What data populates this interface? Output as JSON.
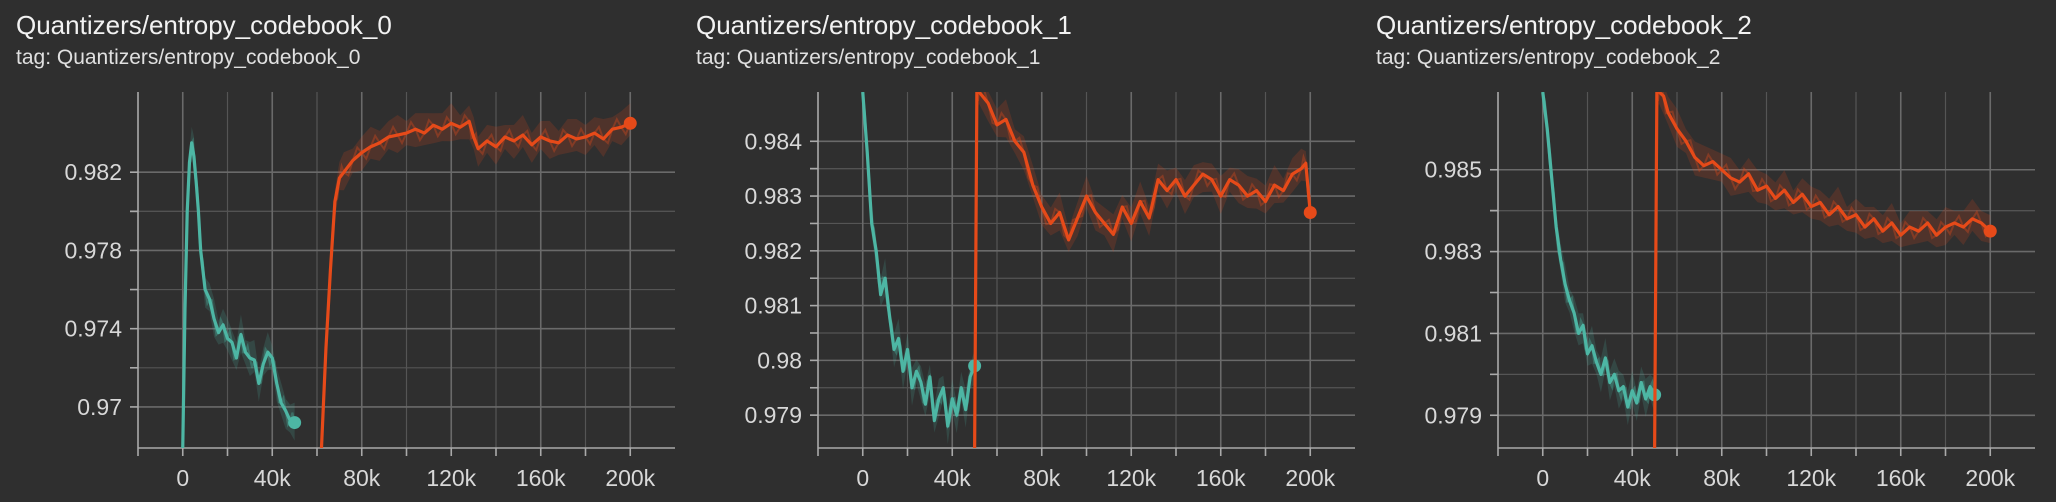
{
  "chart_data": [
    {
      "type": "line",
      "title": "Quantizers/entropy_codebook_0",
      "subtitle": "tag: Quantizers/entropy_codebook_0",
      "xlim": [
        -20000,
        220000
      ],
      "ylim": [
        0.9679,
        0.9861
      ],
      "x_ticks": [
        0,
        40000,
        80000,
        120000,
        160000,
        200000
      ],
      "x_tick_labels": [
        "0",
        "40k",
        "80k",
        "120k",
        "160k",
        "200k"
      ],
      "y_ticks": [
        0.97,
        0.974,
        0.978,
        0.982
      ],
      "y_tick_labels": [
        "0.97",
        "0.974",
        "0.978",
        "0.982"
      ],
      "grid": true,
      "series": [
        {
          "color": "#4db6a4",
          "x": [
            0,
            1000,
            2000,
            3000,
            4000,
            5000,
            6000,
            7000,
            8000,
            10000,
            12000,
            14000,
            16000,
            18000,
            20000,
            22000,
            24000,
            26000,
            28000,
            30000,
            32000,
            34000,
            36000,
            38000,
            40000,
            42000,
            44000,
            46000,
            48000,
            50000
          ],
          "y": [
            0.9679,
            0.975,
            0.98,
            0.9825,
            0.9835,
            0.9828,
            0.9815,
            0.98,
            0.978,
            0.976,
            0.9755,
            0.9745,
            0.9738,
            0.9742,
            0.9735,
            0.9733,
            0.9725,
            0.9737,
            0.9728,
            0.9725,
            0.9724,
            0.9712,
            0.9722,
            0.9728,
            0.9725,
            0.9712,
            0.9702,
            0.9698,
            0.9693,
            0.9692
          ]
        },
        {
          "color": "#e64a19",
          "x": [
            62000,
            64000,
            66000,
            68000,
            70000,
            72000,
            76000,
            80000,
            84000,
            88000,
            92000,
            96000,
            100000,
            104000,
            108000,
            112000,
            116000,
            120000,
            124000,
            128000,
            130000,
            132000,
            136000,
            140000,
            144000,
            148000,
            152000,
            156000,
            160000,
            164000,
            168000,
            172000,
            176000,
            180000,
            184000,
            188000,
            192000,
            196000,
            200000
          ],
          "y": [
            0.9679,
            0.973,
            0.977,
            0.9805,
            0.9817,
            0.982,
            0.9826,
            0.983,
            0.9833,
            0.9835,
            0.9838,
            0.9839,
            0.984,
            0.9842,
            0.984,
            0.9844,
            0.9842,
            0.9845,
            0.9843,
            0.9846,
            0.9838,
            0.9832,
            0.9836,
            0.9833,
            0.9838,
            0.9836,
            0.9839,
            0.9834,
            0.9838,
            0.9836,
            0.9835,
            0.9839,
            0.9837,
            0.9838,
            0.984,
            0.9837,
            0.9842,
            0.9843,
            0.9845
          ]
        }
      ]
    },
    {
      "type": "line",
      "title": "Quantizers/entropy_codebook_1",
      "subtitle": "tag: Quantizers/entropy_codebook_1",
      "xlim": [
        -20000,
        220000
      ],
      "ylim": [
        0.9784,
        0.9849
      ],
      "x_ticks": [
        0,
        40000,
        80000,
        120000,
        160000,
        200000
      ],
      "x_tick_labels": [
        "0",
        "40k",
        "80k",
        "120k",
        "160k",
        "200k"
      ],
      "y_ticks": [
        0.979,
        0.98,
        0.981,
        0.982,
        0.983,
        0.984
      ],
      "y_tick_labels": [
        "0.979",
        "0.98",
        "0.981",
        "0.982",
        "0.983",
        "0.984"
      ],
      "grid": true,
      "series": [
        {
          "color": "#4db6a4",
          "x": [
            0,
            2000,
            4000,
            6000,
            8000,
            10000,
            12000,
            14000,
            16000,
            18000,
            20000,
            22000,
            24000,
            26000,
            28000,
            30000,
            32000,
            34000,
            36000,
            38000,
            40000,
            42000,
            44000,
            46000,
            48000,
            50000
          ],
          "y": [
            0.9849,
            0.9838,
            0.9825,
            0.982,
            0.9812,
            0.9815,
            0.9808,
            0.9802,
            0.9804,
            0.9798,
            0.9802,
            0.9795,
            0.9798,
            0.9796,
            0.9792,
            0.9797,
            0.9789,
            0.9793,
            0.9795,
            0.9788,
            0.9793,
            0.979,
            0.9795,
            0.9791,
            0.9797,
            0.9799
          ]
        },
        {
          "color": "#e64a19",
          "x": [
            50000,
            51000,
            52000,
            56000,
            60000,
            64000,
            68000,
            72000,
            76000,
            80000,
            84000,
            88000,
            92000,
            96000,
            100000,
            104000,
            108000,
            112000,
            116000,
            120000,
            124000,
            128000,
            132000,
            136000,
            140000,
            144000,
            148000,
            152000,
            156000,
            160000,
            164000,
            168000,
            172000,
            176000,
            180000,
            184000,
            188000,
            192000,
            196000,
            198000,
            200000
          ],
          "y": [
            0.9784,
            0.9849,
            0.9849,
            0.9847,
            0.9843,
            0.9844,
            0.984,
            0.9838,
            0.9832,
            0.9828,
            0.9825,
            0.9827,
            0.9822,
            0.9826,
            0.983,
            0.9827,
            0.9825,
            0.9823,
            0.9828,
            0.9825,
            0.9829,
            0.9826,
            0.9833,
            0.9831,
            0.9833,
            0.983,
            0.9832,
            0.9834,
            0.9833,
            0.983,
            0.9833,
            0.9832,
            0.983,
            0.9831,
            0.9829,
            0.9832,
            0.9831,
            0.9834,
            0.9835,
            0.9836,
            0.9827
          ]
        }
      ]
    },
    {
      "type": "line",
      "title": "Quantizers/entropy_codebook_2",
      "subtitle": "tag: Quantizers/entropy_codebook_2",
      "xlim": [
        -20000,
        220000
      ],
      "ylim": [
        0.9782,
        0.9869
      ],
      "x_ticks": [
        0,
        40000,
        80000,
        120000,
        160000,
        200000
      ],
      "x_tick_labels": [
        "0",
        "40k",
        "80k",
        "120k",
        "160k",
        "200k"
      ],
      "y_ticks": [
        0.979,
        0.981,
        0.983,
        0.985
      ],
      "y_tick_labels": [
        "0.979",
        "0.981",
        "0.983",
        "0.985"
      ],
      "grid": true,
      "series": [
        {
          "color": "#4db6a4",
          "x": [
            0,
            2000,
            4000,
            6000,
            8000,
            10000,
            12000,
            14000,
            16000,
            18000,
            20000,
            22000,
            24000,
            26000,
            28000,
            30000,
            32000,
            34000,
            36000,
            38000,
            40000,
            42000,
            44000,
            46000,
            48000,
            50000
          ],
          "y": [
            0.9869,
            0.986,
            0.9848,
            0.9836,
            0.9828,
            0.9822,
            0.9818,
            0.9815,
            0.981,
            0.9812,
            0.9805,
            0.9807,
            0.9803,
            0.98,
            0.9804,
            0.9798,
            0.98,
            0.9796,
            0.9797,
            0.9792,
            0.9796,
            0.9793,
            0.9798,
            0.9794,
            0.9797,
            0.9795
          ]
        },
        {
          "color": "#e64a19",
          "x": [
            50000,
            51000,
            52000,
            54000,
            56000,
            60000,
            64000,
            68000,
            72000,
            76000,
            80000,
            84000,
            88000,
            92000,
            96000,
            100000,
            104000,
            108000,
            112000,
            116000,
            120000,
            124000,
            128000,
            132000,
            136000,
            140000,
            144000,
            148000,
            152000,
            156000,
            160000,
            164000,
            168000,
            172000,
            176000,
            180000,
            184000,
            188000,
            192000,
            196000,
            200000
          ],
          "y": [
            0.9782,
            0.9869,
            0.9869,
            0.9868,
            0.9864,
            0.986,
            0.9857,
            0.9853,
            0.9851,
            0.9852,
            0.985,
            0.9848,
            0.9847,
            0.9849,
            0.9845,
            0.9846,
            0.9843,
            0.9845,
            0.9842,
            0.9844,
            0.9841,
            0.9842,
            0.9839,
            0.9841,
            0.9838,
            0.9839,
            0.9836,
            0.9838,
            0.9835,
            0.9837,
            0.9834,
            0.9836,
            0.9835,
            0.9837,
            0.9834,
            0.9836,
            0.9837,
            0.9836,
            0.9838,
            0.9837,
            0.9835
          ]
        }
      ]
    }
  ]
}
